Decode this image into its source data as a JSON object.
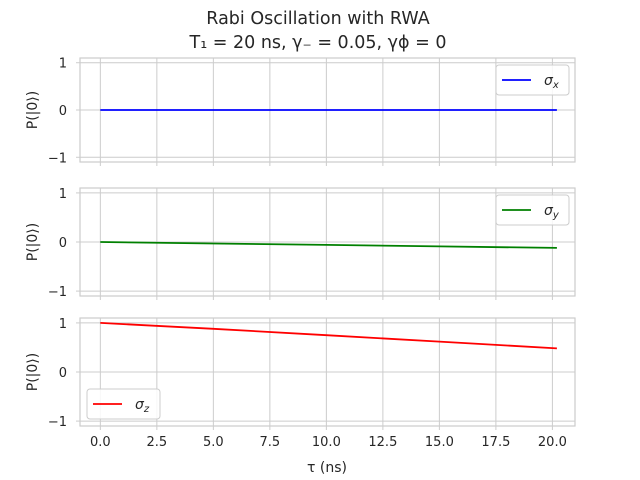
{
  "chart_data": {
    "type": "line",
    "title_line1": "Rabi Oscillation with RWA",
    "title_line2": "T₁ = 20 ns, γ₋ = 0.05, γϕ = 0",
    "xlabel": "τ (ns)",
    "grid": true,
    "shared_x": {
      "xlim": [
        -0.9,
        21.0
      ],
      "ticks": [
        0.0,
        2.5,
        5.0,
        7.5,
        10.0,
        12.5,
        15.0,
        17.5,
        20.0
      ],
      "tick_labels": [
        "0.0",
        "2.5",
        "5.0",
        "7.5",
        "10.0",
        "12.5",
        "15.0",
        "17.5",
        "20.0"
      ]
    },
    "panels": [
      {
        "ylabel": "P(|0⟩)",
        "ylim": [
          -1.1,
          1.1
        ],
        "yticks": [
          -1,
          0,
          1
        ],
        "ytick_labels": [
          "−1",
          "0",
          "1"
        ],
        "legend_loc": "upper right",
        "series": [
          {
            "name": "σx",
            "color": "#0000ff",
            "x": [
              0.0,
              20.2
            ],
            "y": [
              0.0,
              0.0
            ]
          }
        ]
      },
      {
        "ylabel": "P(|0⟩)",
        "ylim": [
          -1.1,
          1.1
        ],
        "yticks": [
          -1,
          0,
          1
        ],
        "ytick_labels": [
          "−1",
          "0",
          "1"
        ],
        "legend_loc": "upper right",
        "series": [
          {
            "name": "σy",
            "color": "#008000",
            "x": [
              0.0,
              5.0,
              10.0,
              15.0,
              20.2
            ],
            "y": [
              0.0,
              -0.03,
              -0.06,
              -0.09,
              -0.12
            ]
          }
        ]
      },
      {
        "ylabel": "P(|0⟩)",
        "ylim": [
          -1.1,
          1.1
        ],
        "yticks": [
          -1,
          0,
          1
        ],
        "ytick_labels": [
          "−1",
          "0",
          "1"
        ],
        "legend_loc": "lower left",
        "series": [
          {
            "name": "σz",
            "color": "#ff0000",
            "x": [
              0.0,
              5.0,
              10.0,
              15.0,
              20.2
            ],
            "y": [
              1.0,
              0.88,
              0.75,
              0.62,
              0.48
            ]
          }
        ]
      }
    ]
  }
}
